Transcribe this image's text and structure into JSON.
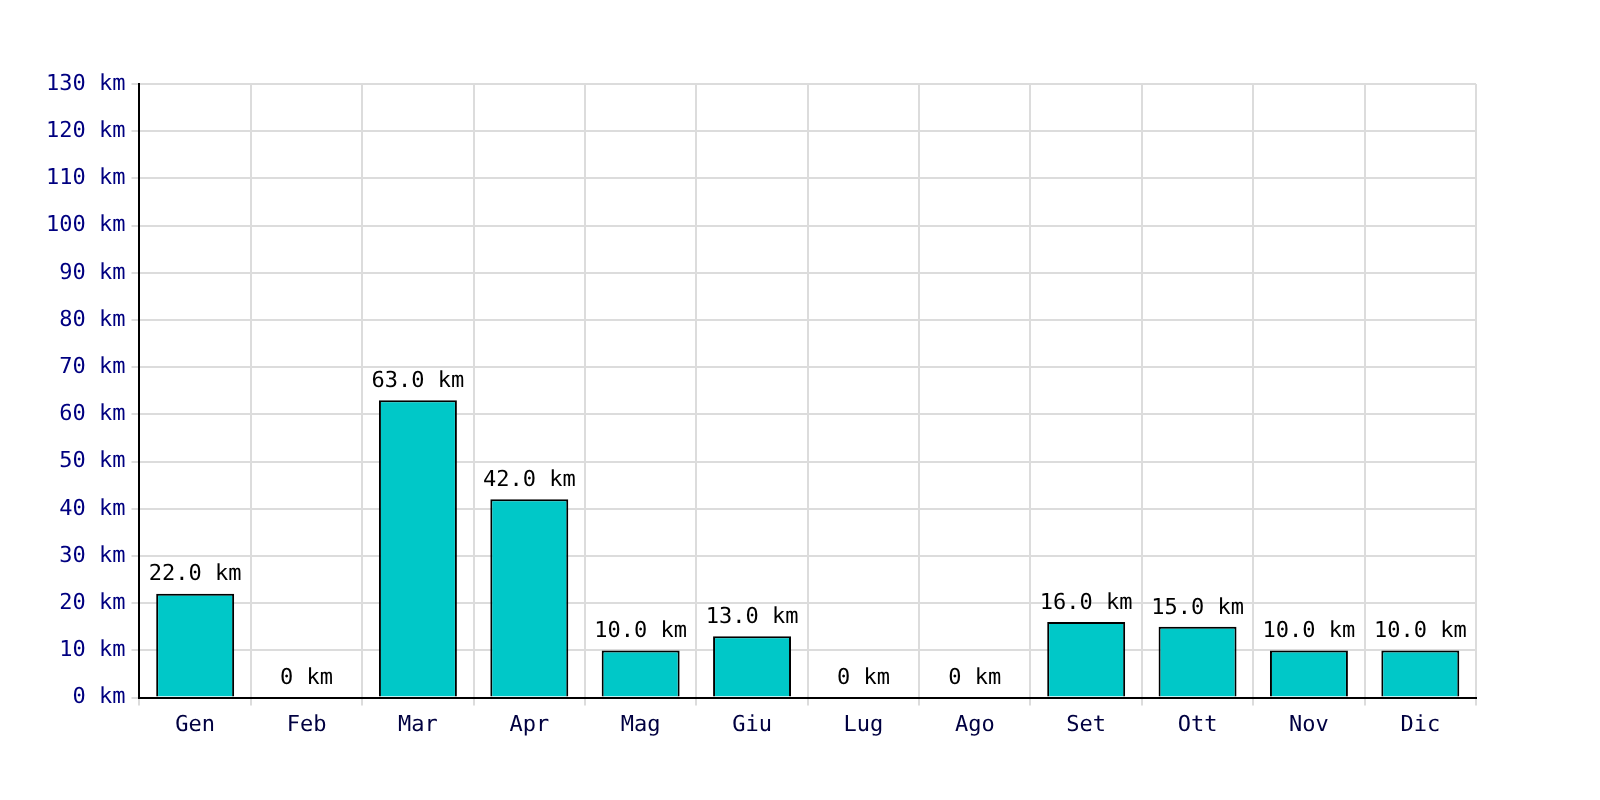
{
  "chart_data": {
    "type": "bar",
    "categories": [
      "Gen",
      "Feb",
      "Mar",
      "Apr",
      "Mag",
      "Giu",
      "Lug",
      "Ago",
      "Set",
      "Ott",
      "Nov",
      "Dic"
    ],
    "values": [
      22,
      0,
      63,
      42,
      10,
      13,
      0,
      0,
      16,
      15,
      10,
      10
    ],
    "value_labels": [
      "22.0 km",
      "0 km",
      "63.0 km",
      "42.0 km",
      "10.0 km",
      "13.0 km",
      "0 km",
      "0 km",
      "16.0 km",
      "15.0 km",
      "10.0 km",
      "10.0 km"
    ],
    "color": "#00c8c8",
    "ylim": [
      0,
      130
    ],
    "yticks": [
      {
        "value": 0,
        "label": "0 km"
      },
      {
        "value": 10,
        "label": "10 km"
      },
      {
        "value": 20,
        "label": "20 km"
      },
      {
        "value": 30,
        "label": "30 km"
      },
      {
        "value": 40,
        "label": "40 km"
      },
      {
        "value": 50,
        "label": "50 km"
      },
      {
        "value": 60,
        "label": "60 km"
      },
      {
        "value": 70,
        "label": "70 km"
      },
      {
        "value": 80,
        "label": "80 km"
      },
      {
        "value": 90,
        "label": "90 km"
      },
      {
        "value": 100,
        "label": "100 km"
      },
      {
        "value": 110,
        "label": "110 km"
      },
      {
        "value": 120,
        "label": "120 km"
      },
      {
        "value": 130,
        "label": "130 km"
      }
    ],
    "grid": true,
    "legend": false
  }
}
